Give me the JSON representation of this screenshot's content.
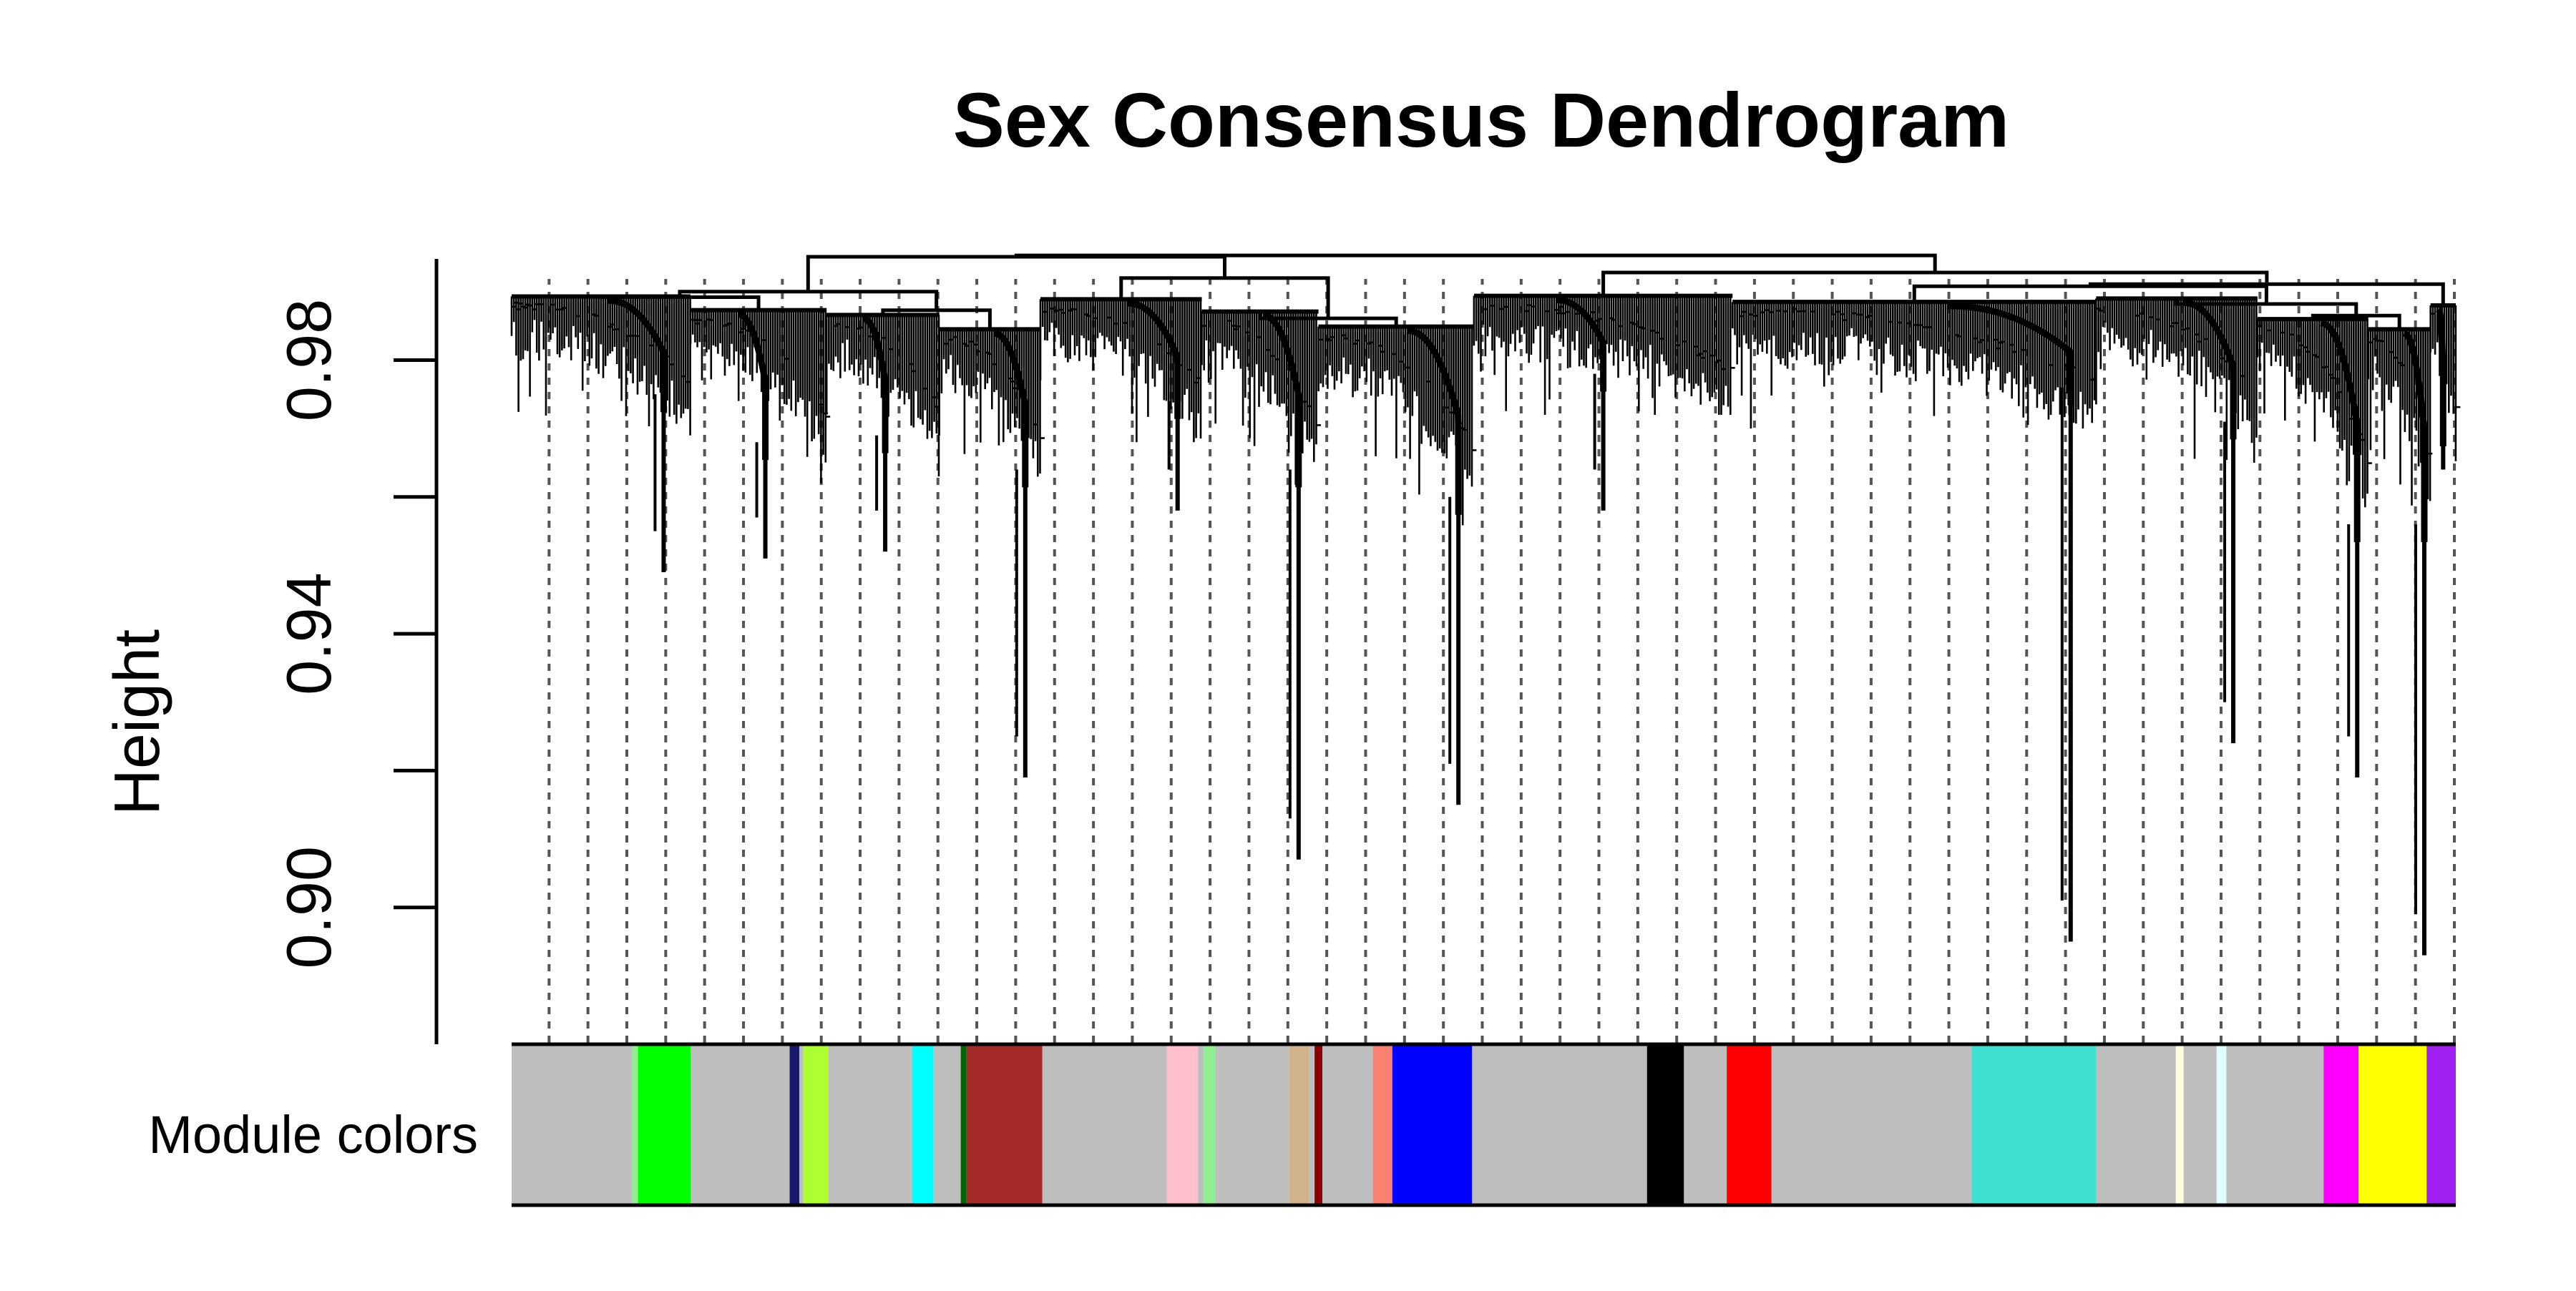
{
  "chart_data": {
    "type": "dendrogram",
    "title": "Sex Consensus Dendrogram",
    "ylabel": "Height",
    "xlabel": "",
    "ylim": [
      0.88,
      0.995
    ],
    "y_ticks": [
      0.9,
      0.92,
      0.94,
      0.96,
      0.98
    ],
    "y_tick_labels": [
      "0.90",
      "",
      "0.94",
      "",
      "0.98"
    ],
    "grid": false,
    "dashed_guides": true,
    "color_row_label": "Module colors",
    "leaf_count": 1000,
    "clusters": [
      {
        "start": 0,
        "end": 92,
        "top": 0.9893,
        "low": 0.969,
        "drop": {
          "pos": 0.85,
          "to": 0.949
        }
      },
      {
        "start": 92,
        "end": 162,
        "top": 0.9873,
        "low": 0.962,
        "drop": {
          "pos": 0.55,
          "to": 0.951
        }
      },
      {
        "start": 162,
        "end": 220,
        "top": 0.9866,
        "low": 0.963,
        "drop": {
          "pos": 0.52,
          "to": 0.952
        }
      },
      {
        "start": 220,
        "end": 272,
        "top": 0.9845,
        "low": 0.958,
        "drop": {
          "pos": 0.85,
          "to": 0.919
        }
      },
      {
        "start": 272,
        "end": 355,
        "top": 0.9889,
        "low": 0.968,
        "drop": {
          "pos": 0.85,
          "to": 0.958
        }
      },
      {
        "start": 355,
        "end": 415,
        "top": 0.9871,
        "low": 0.958,
        "drop": {
          "pos": 0.83,
          "to": 0.907
        }
      },
      {
        "start": 415,
        "end": 495,
        "top": 0.9849,
        "low": 0.954,
        "drop": {
          "pos": 0.9,
          "to": 0.915
        }
      },
      {
        "start": 495,
        "end": 628,
        "top": 0.9894,
        "low": 0.972,
        "drop": {
          "pos": 0.5,
          "to": 0.958
        }
      },
      {
        "start": 628,
        "end": 815,
        "top": 0.9885,
        "low": 0.97,
        "drop": {
          "pos": 0.93,
          "to": 0.895
        }
      },
      {
        "start": 815,
        "end": 898,
        "top": 0.989,
        "low": 0.965,
        "drop": {
          "pos": 0.85,
          "to": 0.924
        }
      },
      {
        "start": 898,
        "end": 955,
        "top": 0.986,
        "low": 0.95,
        "drop": {
          "pos": 0.9,
          "to": 0.919
        }
      },
      {
        "start": 955,
        "end": 987,
        "top": 0.9845,
        "low": 0.95,
        "drop": {
          "pos": 0.9,
          "to": 0.893
        }
      },
      {
        "start": 987,
        "end": 1000,
        "top": 0.988,
        "low": 0.964,
        "drop": {
          "pos": 0.5,
          "to": 0.964
        }
      }
    ],
    "merges": [
      {
        "id": "m1",
        "left": 0,
        "right": 1,
        "height": 0.9892
      },
      {
        "id": "m2",
        "left": 2,
        "right": 3,
        "height": 0.9873
      },
      {
        "id": "m3",
        "left": "m1",
        "right": "m2",
        "height": 0.99
      },
      {
        "id": "m4",
        "left": 5,
        "right": 6,
        "height": 0.9861
      },
      {
        "id": "m5",
        "left": 4,
        "right": "m4",
        "height": 0.992
      },
      {
        "id": "m6",
        "left": "m3",
        "right": "m5",
        "height": 0.9951
      },
      {
        "id": "m7",
        "left": 10,
        "right": 11,
        "height": 0.9865
      },
      {
        "id": "m8",
        "left": 9,
        "right": "m7",
        "height": 0.9882
      },
      {
        "id": "m9",
        "left": 8,
        "right": "m8",
        "height": 0.9908
      },
      {
        "id": "m10",
        "left": "m9",
        "right": 12,
        "height": 0.9911
      },
      {
        "id": "m11",
        "left": 7,
        "right": "m10",
        "height": 0.9928
      },
      {
        "id": "m12",
        "left": "m6",
        "right": "m11",
        "height": 0.9953
      }
    ],
    "module_color_bands": [
      {
        "start": 0,
        "end": 62,
        "color": "#bebebe"
      },
      {
        "start": 62,
        "end": 65,
        "color": "#90ee90"
      },
      {
        "start": 65,
        "end": 92,
        "color": "#00ff00"
      },
      {
        "start": 92,
        "end": 143,
        "color": "#bebebe"
      },
      {
        "start": 143,
        "end": 148,
        "color": "#191970"
      },
      {
        "start": 148,
        "end": 150,
        "color": "#bebebe"
      },
      {
        "start": 150,
        "end": 163,
        "color": "#adff2f"
      },
      {
        "start": 163,
        "end": 206,
        "color": "#bebebe"
      },
      {
        "start": 206,
        "end": 217,
        "color": "#00ffff"
      },
      {
        "start": 217,
        "end": 231,
        "color": "#bebebe"
      },
      {
        "start": 231,
        "end": 234,
        "color": "#006400"
      },
      {
        "start": 234,
        "end": 273,
        "color": "#a52a2a"
      },
      {
        "start": 273,
        "end": 337,
        "color": "#bebebe"
      },
      {
        "start": 337,
        "end": 353,
        "color": "#ffc0cb"
      },
      {
        "start": 353,
        "end": 356,
        "color": "#bebebe"
      },
      {
        "start": 356,
        "end": 362,
        "color": "#90ee90"
      },
      {
        "start": 362,
        "end": 400,
        "color": "#bebebe"
      },
      {
        "start": 400,
        "end": 410,
        "color": "#d2b48c"
      },
      {
        "start": 410,
        "end": 413,
        "color": "#bebebe"
      },
      {
        "start": 413,
        "end": 417,
        "color": "#8b0000"
      },
      {
        "start": 417,
        "end": 443,
        "color": "#bebebe"
      },
      {
        "start": 443,
        "end": 453,
        "color": "#fa8072"
      },
      {
        "start": 453,
        "end": 494,
        "color": "#0000ff"
      },
      {
        "start": 494,
        "end": 584,
        "color": "#bebebe"
      },
      {
        "start": 584,
        "end": 603,
        "color": "#000000"
      },
      {
        "start": 603,
        "end": 625,
        "color": "#bebebe"
      },
      {
        "start": 625,
        "end": 648,
        "color": "#ff0000"
      },
      {
        "start": 648,
        "end": 751,
        "color": "#bebebe"
      },
      {
        "start": 751,
        "end": 815,
        "color": "#40e0d0"
      },
      {
        "start": 815,
        "end": 856,
        "color": "#bebebe"
      },
      {
        "start": 856,
        "end": 860,
        "color": "#ffffe0"
      },
      {
        "start": 860,
        "end": 877,
        "color": "#bebebe"
      },
      {
        "start": 877,
        "end": 882,
        "color": "#e0ffff"
      },
      {
        "start": 882,
        "end": 932,
        "color": "#bebebe"
      },
      {
        "start": 932,
        "end": 950,
        "color": "#ff00ff"
      },
      {
        "start": 950,
        "end": 985,
        "color": "#ffff00"
      },
      {
        "start": 985,
        "end": 1000,
        "color": "#a020f0"
      }
    ]
  }
}
